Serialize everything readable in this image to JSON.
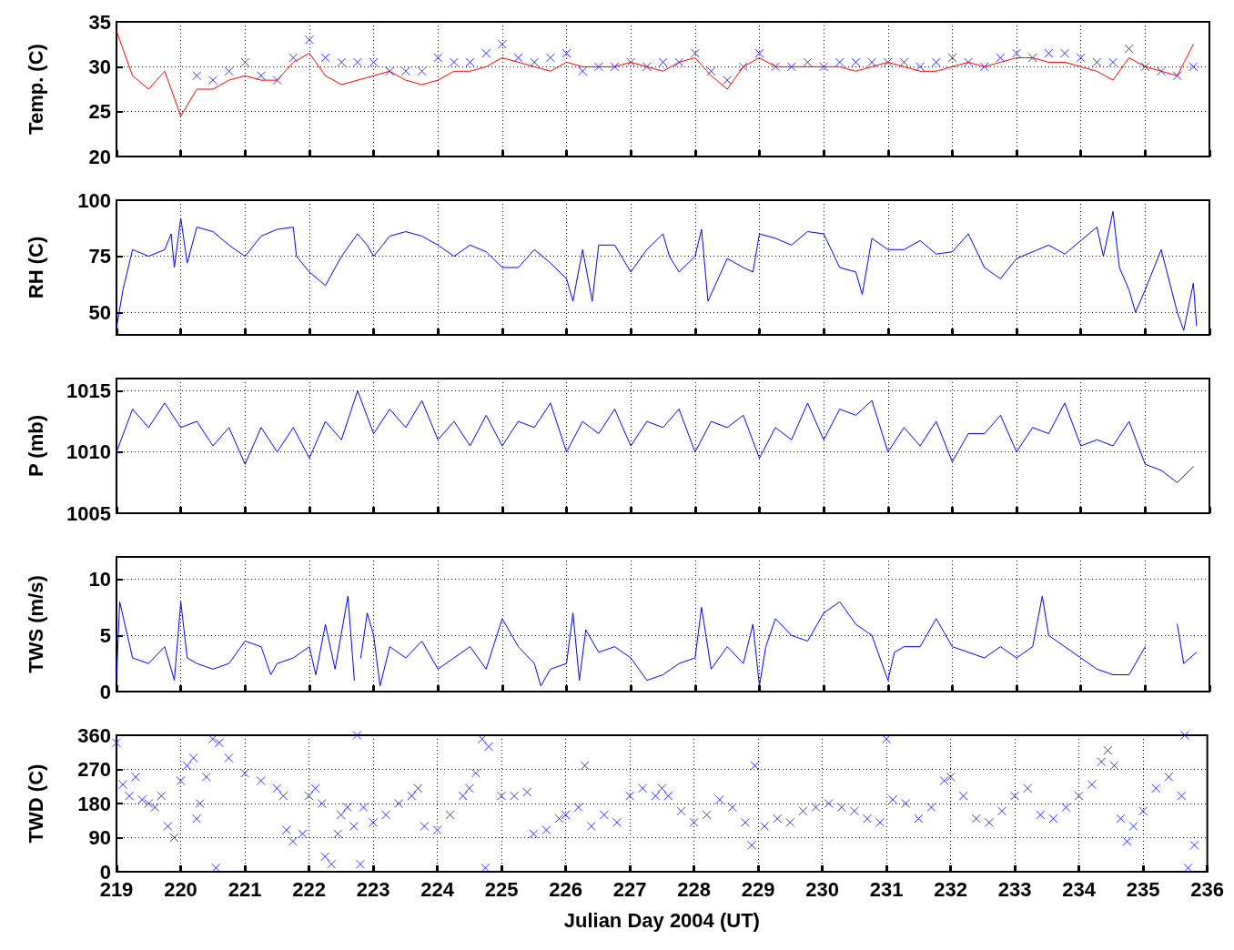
{
  "chart_data": [
    {
      "type": "line",
      "ylabel": "Temp. (C)",
      "xlim": [
        219,
        236
      ],
      "xticks": [
        219,
        220,
        221,
        222,
        223,
        224,
        225,
        226,
        227,
        228,
        229,
        230,
        231,
        232,
        233,
        234,
        235,
        236
      ],
      "ylim": [
        20,
        35
      ],
      "yticks": [
        20,
        25,
        30,
        35
      ],
      "grid": true,
      "tick_labels": "y",
      "series": [
        {
          "color": "#ff0000",
          "x": [
            219,
            219.25,
            219.5,
            219.75,
            220,
            220.25,
            220.5,
            220.75,
            221,
            221.25,
            221.5,
            221.75,
            222,
            222.25,
            222.5,
            222.75,
            223,
            223.25,
            223.5,
            223.75,
            224,
            224.25,
            224.5,
            224.75,
            225,
            225.25,
            225.5,
            225.75,
            226,
            226.25,
            226.5,
            226.75,
            227,
            227.25,
            227.5,
            227.75,
            228,
            228.25,
            228.5,
            228.75,
            229,
            229.25,
            229.5,
            229.75,
            230,
            230.25,
            230.5,
            230.75,
            231,
            231.25,
            231.5,
            231.75,
            232,
            232.25,
            232.5,
            232.75,
            233,
            233.25,
            233.5,
            233.75,
            234,
            234.25,
            234.5,
            234.75,
            235,
            235.25,
            235.5,
            235.75
          ],
          "values": [
            34,
            29,
            27.5,
            29.5,
            24.5,
            27.5,
            27.5,
            28.5,
            29,
            28.5,
            28.5,
            30.5,
            31.5,
            29,
            28,
            28.5,
            29,
            29.5,
            28.5,
            28,
            28.5,
            29.5,
            29.5,
            30,
            31,
            30.5,
            30,
            29.5,
            30.5,
            30,
            30,
            30,
            30.5,
            30,
            29.5,
            30.5,
            31,
            29,
            27.5,
            30,
            31,
            30,
            30,
            30,
            30,
            30,
            29.5,
            30,
            30.5,
            30,
            29.5,
            29.5,
            30,
            30.5,
            30,
            30.5,
            31,
            31,
            30.5,
            30.5,
            30,
            29.5,
            28.5,
            31,
            30,
            29.5,
            29,
            32.5
          ]
        },
        {
          "type": "scatter",
          "marker": "cross",
          "color": "#0000ff",
          "x": [
            220.25,
            220.5,
            220.75,
            221,
            221.25,
            221.5,
            221.75,
            222,
            222.25,
            222.5,
            222.75,
            223,
            223.25,
            223.5,
            223.75,
            224,
            224.25,
            224.5,
            224.75,
            225,
            225.25,
            225.5,
            225.75,
            226,
            226.25,
            226.5,
            226.75,
            227,
            227.25,
            227.5,
            227.75,
            228,
            228.25,
            228.5,
            228.75,
            229,
            229.25,
            229.5,
            229.75,
            230,
            230.25,
            230.5,
            230.75,
            231,
            231.25,
            231.5,
            231.75,
            232,
            232.25,
            232.5,
            232.75,
            233,
            233.25,
            233.5,
            233.75,
            234,
            234.25,
            234.5,
            234.75,
            235,
            235.25,
            235.5,
            235.75
          ],
          "values": [
            29,
            28.5,
            29.5,
            30.5,
            29,
            28.5,
            31,
            33,
            31,
            30.5,
            30.5,
            30.5,
            29.5,
            29.5,
            29.5,
            31,
            30.5,
            30.5,
            31.5,
            32.5,
            31,
            30.5,
            31,
            31.5,
            29.5,
            30,
            30,
            30.5,
            30,
            30.5,
            30.5,
            31.5,
            29.5,
            28.5,
            30,
            31.5,
            30,
            30,
            30.5,
            30,
            30.5,
            30.5,
            30.5,
            30.5,
            30.5,
            30,
            30.5,
            31,
            30.5,
            30,
            31,
            31.5,
            31,
            31.5,
            31.5,
            31,
            30.5,
            30.5,
            32,
            30,
            29.5,
            29,
            30
          ]
        }
      ]
    },
    {
      "type": "line",
      "ylabel": "RH (C)",
      "xlim": [
        219,
        236
      ],
      "xticks": [
        219,
        220,
        221,
        222,
        223,
        224,
        225,
        226,
        227,
        228,
        229,
        230,
        231,
        232,
        233,
        234,
        235,
        236
      ],
      "ylim": [
        40,
        100
      ],
      "yticks": [
        50,
        75,
        100
      ],
      "grid": true,
      "tick_labels": "y",
      "series": [
        {
          "color": "#0000ff",
          "x": [
            219,
            219.1,
            219.25,
            219.5,
            219.75,
            219.85,
            219.9,
            220,
            220.1,
            220.25,
            220.5,
            220.75,
            221,
            221.25,
            221.5,
            221.75,
            221.8,
            222,
            222.25,
            222.5,
            222.75,
            222.9,
            223,
            223.25,
            223.5,
            223.75,
            224,
            224.25,
            224.5,
            224.75,
            225,
            225.25,
            225.5,
            225.75,
            226,
            226.1,
            226.25,
            226.4,
            226.5,
            226.75,
            227,
            227.25,
            227.5,
            227.6,
            227.75,
            228,
            228.1,
            228.2,
            228.5,
            228.75,
            228.9,
            229,
            229.25,
            229.5,
            229.75,
            230,
            230.25,
            230.5,
            230.6,
            230.75,
            231,
            231.25,
            231.5,
            231.75,
            232,
            232.25,
            232.5,
            232.75,
            233,
            233.25,
            233.5,
            233.75,
            234,
            234.25,
            234.35,
            234.5,
            234.6,
            234.75,
            234.85,
            235,
            235.25,
            235.5,
            235.6,
            235.75,
            235.8
          ],
          "values": [
            43,
            60,
            78,
            75,
            78,
            85,
            70,
            92,
            72,
            88,
            86,
            80,
            75,
            84,
            87,
            88,
            75,
            68,
            62,
            75,
            85,
            80,
            75,
            84,
            86,
            84,
            80,
            75,
            80,
            77,
            70,
            70,
            78,
            72,
            65,
            55,
            78,
            55,
            80,
            80,
            68,
            78,
            85,
            75,
            68,
            75,
            87,
            55,
            74,
            70,
            68,
            85,
            83,
            80,
            86,
            85,
            70,
            68,
            58,
            83,
            78,
            78,
            82,
            76,
            77,
            85,
            70,
            65,
            74,
            77,
            80,
            76,
            82,
            88,
            75,
            95,
            70,
            60,
            50,
            60,
            78,
            50,
            42,
            63,
            44
          ]
        }
      ]
    },
    {
      "type": "line",
      "ylabel": "P (mb)",
      "xlim": [
        219,
        236
      ],
      "xticks": [
        219,
        220,
        221,
        222,
        223,
        224,
        225,
        226,
        227,
        228,
        229,
        230,
        231,
        232,
        233,
        234,
        235,
        236
      ],
      "ylim": [
        1005,
        1016
      ],
      "yticks": [
        1005,
        1010,
        1015
      ],
      "grid": true,
      "tick_labels": "y",
      "series": [
        {
          "color": "#0000ff",
          "x": [
            219,
            219.25,
            219.5,
            219.75,
            220,
            220.25,
            220.5,
            220.75,
            221,
            221.25,
            221.5,
            221.75,
            222,
            222.25,
            222.5,
            222.75,
            223,
            223.25,
            223.5,
            223.75,
            224,
            224.25,
            224.5,
            224.75,
            225,
            225.25,
            225.5,
            225.75,
            226,
            226.25,
            226.5,
            226.75,
            227,
            227.25,
            227.5,
            227.75,
            228,
            228.25,
            228.5,
            228.75,
            229,
            229.25,
            229.5,
            229.75,
            230,
            230.25,
            230.5,
            230.75,
            231,
            231.25,
            231.5,
            231.75,
            232,
            232.25,
            232.5,
            232.75,
            233,
            233.25,
            233.5,
            233.75,
            234,
            234.25,
            234.5,
            234.75,
            235,
            235.25,
            235.5,
            235.75
          ],
          "values": [
            1010,
            1013.5,
            1012,
            1014,
            1012,
            1012.5,
            1010.5,
            1012,
            1009,
            1012,
            1010,
            1012,
            1009.5,
            1012.5,
            1011,
            1015,
            1011.5,
            1013.5,
            1012,
            1014.2,
            1011,
            1012.5,
            1010.5,
            1013,
            1010.5,
            1012.5,
            1012,
            1014,
            1010,
            1012.5,
            1011.5,
            1013.5,
            1010.5,
            1012.5,
            1012,
            1013.5,
            1010,
            1012.5,
            1012,
            1013,
            1009.5,
            1012,
            1011,
            1014,
            1011,
            1013.5,
            1013,
            1014.2,
            1010,
            1012,
            1010.5,
            1012.5,
            1009.2,
            1011.5,
            1011.5,
            1013,
            1010,
            1012,
            1011.5,
            1014,
            1010.5,
            1011,
            1010.5,
            1012.5,
            1009,
            1008.5,
            1007.5,
            1008.8
          ]
        }
      ]
    },
    {
      "type": "line",
      "ylabel": "TWS (m/s)",
      "xlim": [
        219,
        236
      ],
      "xticks": [
        219,
        220,
        221,
        222,
        223,
        224,
        225,
        226,
        227,
        228,
        229,
        230,
        231,
        232,
        233,
        234,
        235,
        236
      ],
      "ylim": [
        0,
        12
      ],
      "yticks": [
        0,
        5,
        10
      ],
      "grid": true,
      "tick_labels": "y",
      "series": [
        {
          "color": "#0000ff",
          "x": [
            219,
            219.05,
            219.25,
            219.5,
            219.75,
            219.9,
            220,
            220.1,
            220.25,
            220.5,
            220.75,
            221,
            221.25,
            221.4,
            221.5,
            221.75,
            222,
            222.1,
            222.25,
            222.4,
            222.6,
            222.7,
            222.75,
            222.8,
            222.9,
            223,
            223.1,
            223.25,
            223.5,
            223.75,
            224,
            224.25,
            224.5,
            224.75,
            225,
            225.25,
            225.5,
            225.6,
            225.75,
            226,
            226.1,
            226.2,
            226.3,
            226.5,
            226.75,
            227,
            227.25,
            227.5,
            227.75,
            228,
            228.1,
            228.25,
            228.5,
            228.75,
            228.9,
            229,
            229.1,
            229.25,
            229.5,
            229.75,
            230,
            230.25,
            230.5,
            230.75,
            231,
            231.1,
            231.25,
            231.5,
            231.75,
            232,
            232.25,
            232.5,
            232.75,
            233,
            233.25,
            233.4,
            233.5,
            233.75,
            234,
            234.25,
            234.5,
            234.75,
            235,
            235.25,
            235.5,
            235.6,
            235.8
          ],
          "values": [
            1,
            8,
            3,
            2.5,
            4,
            1,
            8,
            3,
            2.5,
            2,
            2.5,
            4.5,
            4,
            1.5,
            2.5,
            3,
            4,
            1.5,
            6,
            2,
            8.5,
            1,
            null,
            3,
            7,
            5,
            0.5,
            4,
            3,
            4.5,
            2,
            3,
            4,
            2,
            6.5,
            4,
            2.5,
            0.5,
            2,
            2.5,
            7,
            1,
            5.5,
            3.5,
            4,
            3,
            1,
            1.5,
            2.5,
            3,
            7.5,
            2,
            4,
            2.5,
            6,
            0.5,
            4,
            6.5,
            5,
            4.5,
            7,
            8,
            6,
            5,
            1,
            3.5,
            4,
            4,
            6.5,
            4,
            3.5,
            3,
            4,
            3,
            4,
            8.5,
            5,
            4,
            3,
            2,
            1.5,
            1.5,
            4,
            null,
            6,
            2.5,
            3.5
          ]
        }
      ]
    },
    {
      "type": "scatter",
      "ylabel": "TWD (C)",
      "xlabel": "Julian Day 2004 (UT)",
      "xlim": [
        219,
        236
      ],
      "xticks": [
        219,
        220,
        221,
        222,
        223,
        224,
        225,
        226,
        227,
        228,
        229,
        230,
        231,
        232,
        233,
        234,
        235,
        236
      ],
      "ylim": [
        0,
        360
      ],
      "yticks": [
        0,
        90,
        180,
        270,
        360
      ],
      "grid": true,
      "marker": "cross",
      "series": [
        {
          "color": "#0000ff",
          "x": [
            219,
            219.1,
            219.2,
            219.3,
            219.4,
            219.5,
            219.6,
            219.7,
            219.8,
            219.9,
            220,
            220.1,
            220.2,
            220.25,
            220.3,
            220.4,
            220.5,
            220.55,
            220.6,
            220.75,
            221,
            221.25,
            221.5,
            221.6,
            221.65,
            221.75,
            221.9,
            222,
            222.1,
            222.2,
            222.25,
            222.35,
            222.45,
            222.5,
            222.6,
            222.7,
            222.75,
            222.8,
            222.85,
            223,
            223.2,
            223.4,
            223.6,
            223.7,
            223.8,
            224,
            224.2,
            224.4,
            224.5,
            224.6,
            224.7,
            224.75,
            224.8,
            225,
            225.2,
            225.4,
            225.5,
            225.7,
            225.9,
            226,
            226.2,
            226.3,
            226.4,
            226.6,
            226.8,
            227,
            227.2,
            227.4,
            227.5,
            227.6,
            227.8,
            228,
            228.2,
            228.4,
            228.6,
            228.8,
            228.9,
            228.95,
            229.1,
            229.3,
            229.5,
            229.7,
            229.9,
            230.1,
            230.3,
            230.5,
            230.7,
            230.9,
            231,
            231.1,
            231.3,
            231.5,
            231.7,
            231.9,
            232,
            232.2,
            232.4,
            232.6,
            232.8,
            233,
            233.2,
            233.4,
            233.6,
            233.8,
            234,
            234.2,
            234.35,
            234.45,
            234.55,
            234.65,
            234.75,
            234.85,
            235,
            235.2,
            235.4,
            235.6,
            235.65,
            235.7,
            235.8
          ],
          "values": [
            340,
            230,
            200,
            250,
            190,
            180,
            170,
            200,
            120,
            90,
            240,
            280,
            300,
            140,
            180,
            250,
            350,
            10,
            340,
            300,
            260,
            240,
            220,
            200,
            110,
            80,
            100,
            200,
            220,
            180,
            40,
            20,
            100,
            150,
            170,
            120,
            360,
            20,
            170,
            130,
            150,
            180,
            200,
            220,
            120,
            110,
            150,
            200,
            220,
            260,
            350,
            10,
            330,
            200,
            200,
            210,
            100,
            110,
            140,
            150,
            170,
            280,
            120,
            150,
            130,
            200,
            220,
            200,
            220,
            200,
            160,
            130,
            150,
            190,
            170,
            130,
            70,
            280,
            120,
            140,
            130,
            160,
            170,
            180,
            170,
            160,
            140,
            130,
            350,
            190,
            180,
            140,
            170,
            240,
            250,
            200,
            140,
            130,
            160,
            200,
            220,
            150,
            140,
            170,
            200,
            230,
            290,
            320,
            280,
            140,
            80,
            120,
            160,
            220,
            250,
            200,
            360,
            10,
            70
          ]
        }
      ]
    }
  ]
}
